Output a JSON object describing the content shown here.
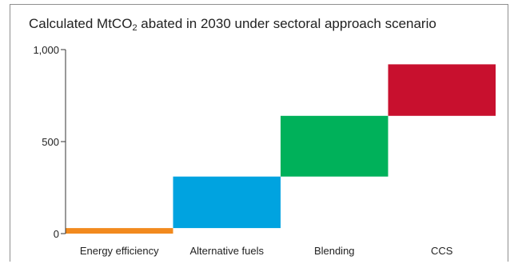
{
  "title": {
    "prefix": "Calculated MtCO",
    "subscript": "2",
    "suffix": " abated in 2030 under sectoral approach scenario"
  },
  "chart_data": {
    "type": "bar",
    "subtype": "waterfall",
    "categories": [
      "Energy efficiency",
      "Alternative fuels",
      "Blending",
      "CCS"
    ],
    "ranges": [
      [
        0,
        30
      ],
      [
        30,
        310
      ],
      [
        310,
        640
      ],
      [
        640,
        920
      ]
    ],
    "values": [
      30,
      280,
      330,
      280
    ],
    "colors": [
      "#f28a1e",
      "#00a3e0",
      "#00b15a",
      "#c8102e"
    ],
    "yticks": [
      "0",
      "500",
      "1,000"
    ],
    "ytick_values": [
      0,
      500,
      1000
    ],
    "ylim": [
      0,
      1000
    ],
    "grid": false,
    "xlabel": "",
    "ylabel": ""
  }
}
